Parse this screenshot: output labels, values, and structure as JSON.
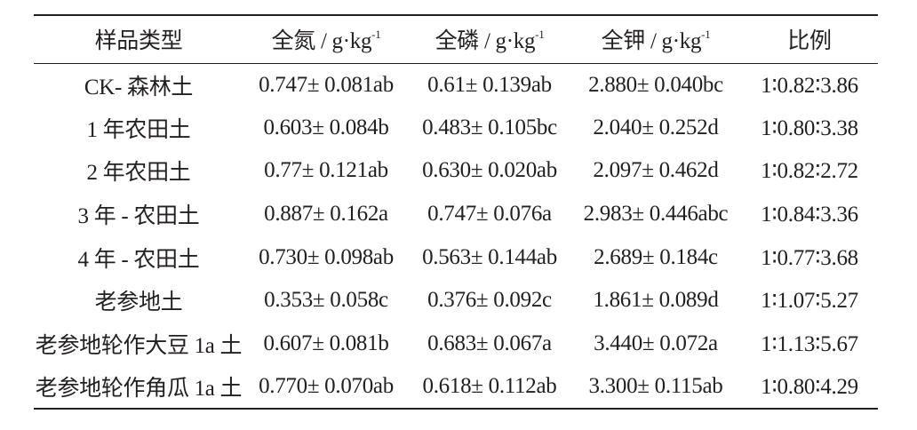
{
  "table": {
    "headers": [
      {
        "label": "样品类型",
        "sup": ""
      },
      {
        "label": "全氮 / g·kg",
        "sup": "-1"
      },
      {
        "label": "全磷 / g·kg",
        "sup": "-1"
      },
      {
        "label": "全钾 / g·kg",
        "sup": "-1"
      },
      {
        "label": "比例",
        "sup": ""
      }
    ],
    "rows": [
      [
        "CK- 森林土",
        "0.747± 0.081ab",
        "0.61± 0.139ab",
        "2.880± 0.040bc",
        "1∶0.82∶3.86"
      ],
      [
        "1 年农田土",
        "0.603± 0.084b",
        "0.483± 0.105bc",
        "2.040± 0.252d",
        "1∶0.80∶3.38"
      ],
      [
        "2 年农田土",
        "0.77± 0.121ab",
        "0.630± 0.020ab",
        "2.097± 0.462d",
        "1∶0.82∶2.72"
      ],
      [
        "3 年 - 农田土",
        "0.887± 0.162a",
        "0.747± 0.076a",
        "2.983± 0.446abc",
        "1∶0.84∶3.36"
      ],
      [
        "4 年 - 农田土",
        "0.730± 0.098ab",
        "0.563± 0.144ab",
        "2.689± 0.184c",
        "1∶0.77∶3.68"
      ],
      [
        "老参地土",
        "0.353± 0.058c",
        "0.376± 0.092c",
        "1.861± 0.089d",
        "1∶1.07∶5.27"
      ],
      [
        "老参地轮作大豆 1a 土",
        "0.607± 0.081b",
        "0.683± 0.067a",
        "3.440± 0.072a",
        "1∶1.13∶5.67"
      ],
      [
        "老参地轮作角瓜 1a 土",
        "0.770± 0.070ab",
        "0.618± 0.112ab",
        "3.300± 0.115ab",
        "1∶0.80∶4.29"
      ]
    ]
  }
}
